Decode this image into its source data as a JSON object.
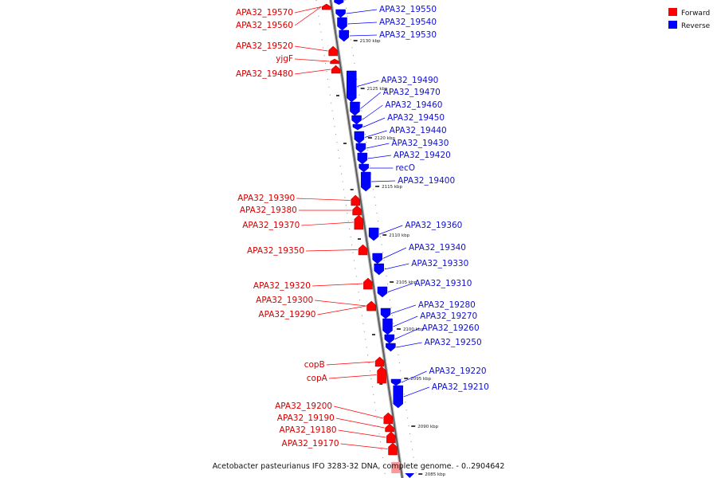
{
  "caption": "Acetobacter pasteurianus IFO 3283-32 DNA, complete genome. - 0..2904642",
  "legend": {
    "forward_label": "Forward",
    "reverse_label": "Reverse",
    "forward_color": "#ff0000",
    "reverse_color": "#0000ff"
  },
  "ticks": [
    "2130 kbp",
    "2125 kbp",
    "2120 kbp",
    "2115 kbp",
    "2110 kbp",
    "2105 kbp",
    "2100 kbp",
    "2095 kbp",
    "2090 kbp",
    "2085 kbp"
  ],
  "forward_genes": [
    "APA32_19570",
    "APA32_19560",
    "APA32_19520",
    "yjgF",
    "APA32_19480",
    "APA32_19390",
    "APA32_19380",
    "APA32_19370",
    "APA32_19350",
    "APA32_19320",
    "APA32_19300",
    "APA32_19290",
    "copB",
    "copA",
    "APA32_19200",
    "APA32_19190",
    "APA32_19180",
    "APA32_19170"
  ],
  "reverse_genes": [
    "APA32_19550",
    "APA32_19540",
    "APA32_19530",
    "APA32_19490",
    "APA32_19470",
    "APA32_19460",
    "APA32_19450",
    "APA32_19440",
    "APA32_19430",
    "APA32_19420",
    "recO",
    "APA32_19400",
    "APA32_19360",
    "APA32_19340",
    "APA32_19330",
    "APA32_19310",
    "APA32_19280",
    "APA32_19270",
    "APA32_19260",
    "APA32_19250",
    "APA32_19220",
    "APA32_19210"
  ]
}
